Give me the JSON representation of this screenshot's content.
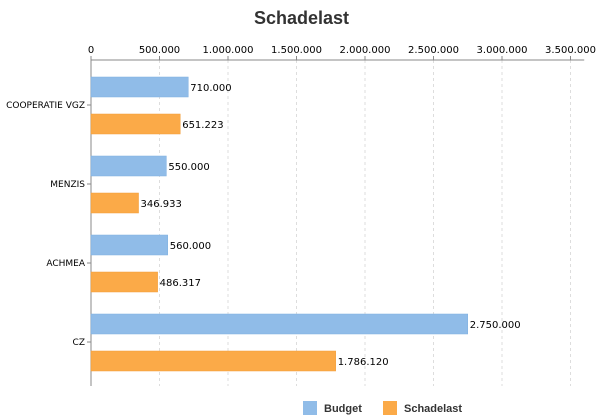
{
  "chart_data": {
    "type": "bar",
    "orientation": "horizontal",
    "title": "Schadelast",
    "categories": [
      "COOPERATIE VGZ",
      "MENZIS",
      "ACHMEA",
      "CZ"
    ],
    "series": [
      {
        "name": "Budget",
        "color": "#90bce8",
        "values": [
          710000,
          550000,
          560000,
          2750000
        ],
        "labels": [
          "710.000",
          "550.000",
          "560.000",
          "2.750.000"
        ]
      },
      {
        "name": "Schadelast",
        "color": "#fbaa48",
        "values": [
          651223,
          346933,
          486317,
          1786120
        ],
        "labels": [
          "651.223",
          "346.933",
          "486.317",
          "1.786.120"
        ]
      }
    ],
    "xaxis": {
      "position": "top",
      "range": [
        0,
        3600000
      ],
      "ticks": [
        0,
        500000,
        1000000,
        1500000,
        2000000,
        2500000,
        3000000,
        3500000
      ],
      "tick_labels": [
        "0",
        "500.000",
        "1.000.000",
        "1.500.000",
        "2.000.000",
        "2.500.000",
        "3.000.000",
        "3.500.000"
      ]
    },
    "grid": "vertical dashed",
    "legend": "bottom"
  }
}
